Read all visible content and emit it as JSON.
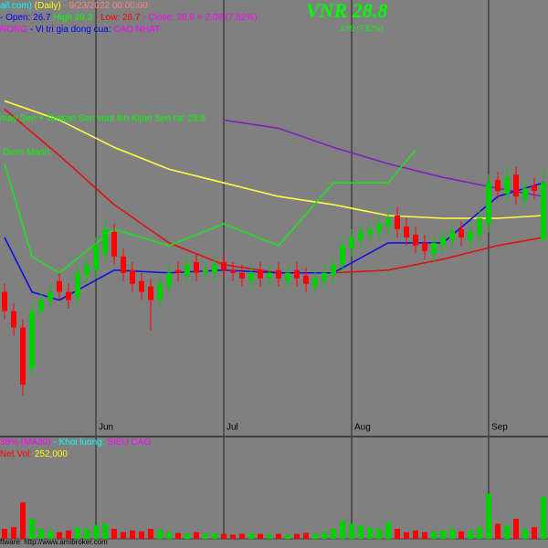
{
  "chart_data": {
    "type": "candlestick",
    "title": "VNR  28.8",
    "subtitle": "2.09 (7.82%)",
    "header_lines": [
      [
        {
          "text": "ail.com)",
          "color": "#00ffff"
        },
        {
          "text": "(Daily)",
          "color": "#ffff00"
        },
        {
          "text": "- 9/23/2022 00:00:00",
          "color": "#ff8080"
        }
      ],
      [
        {
          "text": "- Open: 26.7",
          "color": "#0000ff"
        },
        {
          "text": "High 29.3",
          "color": "#00ff00"
        },
        {
          "text": "- Low: 26.7",
          "color": "#ff0000"
        },
        {
          "text": "- Close: 28.8 = 2.09 (7.82%)",
          "color": "#ff00ff"
        }
      ],
      [
        {
          "text": "RONG",
          "color": "#ff00ff"
        },
        {
          "text": "- Vi tri gia dong cua:",
          "color": "#0000ff"
        },
        {
          "text": "CAO NHAT",
          "color": "#ff00ff"
        }
      ]
    ],
    "annotations": [
      {
        "text": "may Sen + Tenkan Sen vuot len Kijun Sen tai: 28.8",
        "color": "#00ff00"
      },
      {
        "text": "Diem Manh",
        "color": "#00ff00"
      }
    ],
    "categories": [
      null,
      null,
      null,
      null,
      null,
      null,
      null,
      null,
      null,
      null,
      "Jun",
      null,
      null,
      null,
      null,
      null,
      null,
      null,
      null,
      null,
      null,
      null,
      null,
      null,
      "Jul",
      null,
      null,
      null,
      null,
      null,
      null,
      null,
      null,
      null,
      null,
      null,
      null,
      null,
      "Aug",
      null,
      null,
      null,
      null,
      null,
      null,
      null,
      null,
      null,
      null,
      null,
      null,
      null,
      null,
      "Sep",
      null,
      null,
      null,
      null,
      null,
      null
    ],
    "open": [
      24.8,
      24.1,
      23.5,
      22.0,
      24.1,
      24.5,
      25.2,
      24.8,
      24.6,
      25.4,
      25.6,
      26.2,
      27.0,
      26.1,
      25.6,
      25.2,
      25.0,
      24.5,
      25.0,
      25.6,
      25.4,
      25.9,
      25.5,
      25.5,
      25.9,
      25.6,
      25.5,
      25.2,
      25.6,
      25.3,
      25.6,
      25.2,
      25.6,
      25.4,
      25.0,
      25.2,
      25.4,
      25.8,
      26.4,
      26.7,
      26.9,
      27.0,
      27.2,
      27.6,
      27.2,
      26.9,
      26.6,
      26.2,
      26.5,
      26.7,
      27.1,
      26.7,
      26.9,
      27.3,
      28.9,
      28.4,
      29.1,
      28.2,
      28.7,
      26.7
    ],
    "high": [
      25.1,
      24.4,
      23.8,
      24.4,
      24.8,
      25.1,
      25.5,
      25.1,
      25.8,
      26.1,
      26.8,
      27.4,
      27.3,
      26.4,
      25.9,
      25.5,
      25.3,
      25.4,
      25.8,
      25.9,
      26.1,
      26.2,
      25.9,
      26.1,
      26.2,
      25.9,
      25.8,
      25.8,
      25.9,
      25.8,
      25.9,
      25.8,
      25.9,
      25.7,
      25.6,
      25.8,
      26.1,
      26.8,
      27.1,
      27.3,
      27.4,
      27.6,
      27.8,
      27.9,
      27.5,
      27.2,
      26.9,
      26.9,
      27.1,
      27.3,
      27.4,
      27.3,
      27.8,
      29.1,
      29.2,
      29.4,
      29.4,
      28.9,
      29.0,
      29.3
    ],
    "low": [
      23.8,
      23.2,
      21.0,
      21.7,
      23.8,
      24.2,
      24.5,
      24.2,
      24.3,
      25.1,
      25.3,
      25.9,
      25.8,
      25.2,
      24.8,
      24.5,
      23.4,
      24.2,
      24.7,
      25.2,
      25.1,
      25.2,
      25.2,
      25.2,
      25.3,
      25.2,
      25.0,
      24.9,
      25.0,
      25.0,
      25.0,
      24.9,
      25.0,
      24.8,
      24.7,
      24.9,
      25.1,
      25.5,
      26.1,
      26.4,
      26.6,
      26.7,
      26.9,
      26.8,
      26.5,
      26.2,
      26.0,
      25.9,
      26.2,
      26.4,
      26.5,
      26.4,
      26.6,
      27.0,
      28.2,
      28.1,
      28.0,
      27.9,
      28.2,
      26.7
    ],
    "close": [
      24.1,
      23.5,
      21.4,
      24.1,
      24.5,
      24.8,
      24.8,
      24.5,
      25.5,
      25.8,
      26.5,
      27.1,
      26.1,
      25.5,
      25.1,
      24.8,
      24.5,
      25.1,
      25.5,
      25.5,
      25.8,
      25.5,
      25.6,
      25.8,
      25.6,
      25.5,
      25.3,
      25.5,
      25.3,
      25.5,
      25.3,
      25.5,
      25.3,
      25.1,
      25.3,
      25.5,
      25.8,
      26.5,
      26.8,
      27.0,
      27.1,
      27.3,
      27.5,
      27.1,
      26.8,
      26.5,
      26.3,
      26.6,
      26.8,
      27.0,
      26.8,
      27.0,
      27.5,
      28.8,
      28.5,
      29.0,
      28.3,
      28.6,
      28.5,
      28.8
    ],
    "up_color": "#00d000",
    "down_color": "#ff0000",
    "ylim": [
      19.5,
      35.5
    ],
    "overlays": [
      {
        "color": "#ffff40",
        "x": [
          0,
          6,
          12,
          18,
          24,
          30,
          36,
          42,
          48,
          54,
          59
        ],
        "values": [
          31.8,
          31.1,
          30.1,
          29.3,
          28.8,
          28.3,
          28.0,
          27.6,
          27.5,
          27.5,
          27.6
        ]
      },
      {
        "color": "#8020c0",
        "x": [
          24,
          30,
          36,
          42,
          48,
          54,
          59
        ],
        "values": [
          31.1,
          30.8,
          30.1,
          29.5,
          29.0,
          28.6,
          28.3
        ]
      },
      {
        "color": "#e01010",
        "x": [
          0,
          6,
          12,
          18,
          24,
          30,
          36,
          42,
          48,
          54,
          59
        ],
        "values": [
          31.5,
          29.8,
          28.0,
          26.6,
          25.8,
          25.5,
          25.5,
          25.6,
          26.0,
          26.5,
          26.8
        ]
      },
      {
        "color": "#1010e0",
        "x": [
          0,
          3,
          6,
          12,
          18,
          24,
          30,
          36,
          42,
          48,
          54,
          59
        ],
        "values": [
          26.8,
          24.8,
          24.5,
          25.6,
          25.5,
          25.6,
          25.5,
          25.5,
          26.6,
          26.6,
          28.3,
          28.8
        ]
      },
      {
        "color": "#20e020",
        "x": [
          0,
          3,
          6,
          12,
          18,
          24,
          30,
          36,
          42,
          45
        ],
        "values": [
          29.5,
          26.1,
          25.5,
          27.1,
          26.5,
          27.3,
          26.5,
          28.8,
          28.8,
          30.0
        ]
      }
    ],
    "volume": {
      "lines": [
        [
          {
            "text": "38%",
            "color": "#ff00ff"
          },
          {
            "text": "(MA30)",
            "color": "#ff00ff"
          },
          {
            "text": "- Khoi luong:",
            "color": "#00ffff"
          },
          {
            "text": "SIEU CAO",
            "color": "#ff00ff"
          }
        ],
        [
          {
            "text": "Net Vol:",
            "color": "#ff0000"
          },
          {
            "text": "252,000",
            "color": "#ffff00"
          }
        ]
      ],
      "values": [
        60000,
        70000,
        218000,
        120000,
        60000,
        50000,
        40000,
        50000,
        70000,
        60000,
        80000,
        90000,
        60000,
        40000,
        50000,
        45000,
        60000,
        55000,
        40000,
        35000,
        30000,
        40000,
        30000,
        35000,
        30000,
        25000,
        30000,
        35000,
        30000,
        25000,
        30000,
        25000,
        30000,
        35000,
        30000,
        40000,
        60000,
        110000,
        90000,
        80000,
        70000,
        60000,
        100000,
        60000,
        40000,
        50000,
        40000,
        45000,
        50000,
        60000,
        45000,
        50000,
        70000,
        270000,
        90000,
        80000,
        120000,
        60000,
        70000,
        252000
      ],
      "ylim": [
        0,
        600000
      ]
    },
    "footer": "ftware: http://www.amibroker.com"
  }
}
